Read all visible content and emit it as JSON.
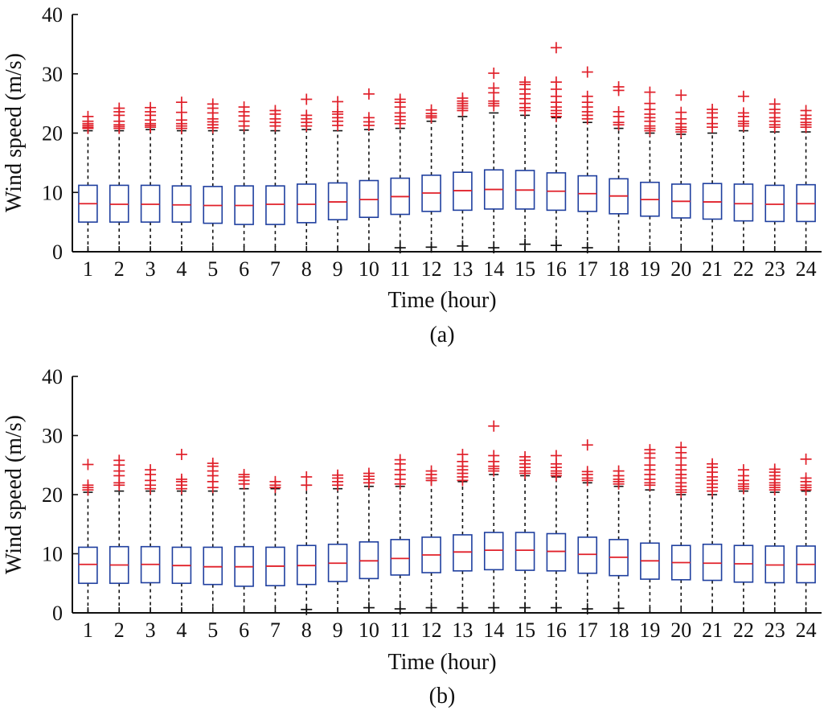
{
  "chart_data": [
    {
      "type": "box",
      "caption": "(a)",
      "xlabel": "Time (hour)",
      "ylabel": "Wind speed (m/s)",
      "ylim": [
        0,
        40
      ],
      "yticks": [
        0,
        10,
        20,
        30,
        40
      ],
      "categories": [
        "1",
        "2",
        "3",
        "4",
        "5",
        "6",
        "7",
        "8",
        "9",
        "10",
        "11",
        "12",
        "13",
        "14",
        "15",
        "16",
        "17",
        "18",
        "19",
        "20",
        "21",
        "22",
        "23",
        "24"
      ],
      "median": [
        8.1,
        8.0,
        8.0,
        7.9,
        7.8,
        7.8,
        8.0,
        8.0,
        8.4,
        8.8,
        9.3,
        9.9,
        10.3,
        10.5,
        10.4,
        10.2,
        9.8,
        9.4,
        8.8,
        8.5,
        8.4,
        8.1,
        8.0,
        8.1
      ],
      "q1": [
        5.0,
        5.0,
        5.0,
        5.0,
        4.8,
        4.6,
        4.6,
        4.9,
        5.4,
        5.8,
        6.3,
        6.8,
        7.0,
        7.2,
        7.2,
        7.0,
        6.8,
        6.4,
        6.0,
        5.7,
        5.5,
        5.2,
        5.1,
        5.1
      ],
      "q3": [
        11.2,
        11.2,
        11.2,
        11.1,
        11.0,
        11.1,
        11.1,
        11.4,
        11.6,
        12.0,
        12.4,
        12.9,
        13.4,
        13.8,
        13.7,
        13.3,
        12.8,
        12.3,
        11.7,
        11.4,
        11.5,
        11.4,
        11.2,
        11.3
      ],
      "whisker_low": [
        0,
        0,
        0,
        0,
        0,
        0,
        0,
        0,
        0,
        0,
        0,
        0,
        0,
        0,
        0,
        0,
        0,
        0,
        0,
        0,
        0,
        0,
        0,
        0
      ],
      "whisker_high": [
        20.4,
        20.4,
        20.6,
        20.4,
        20.4,
        20.5,
        20.4,
        20.6,
        20.4,
        20.6,
        20.8,
        22.0,
        22.8,
        23.4,
        23.0,
        22.6,
        21.8,
        20.8,
        20.0,
        19.8,
        20.0,
        20.4,
        20.2,
        20.2
      ],
      "outliers_high": [
        [
          20.8,
          21.0,
          21.3,
          21.6,
          22.0,
          22.8
        ],
        [
          20.8,
          21.1,
          21.4,
          22.0,
          23.0,
          23.6,
          24.2
        ],
        [
          21.0,
          21.3,
          21.6,
          22.2,
          23.0,
          23.6,
          24.3
        ],
        [
          20.8,
          21.2,
          21.6,
          22.2,
          23.5,
          25.2
        ],
        [
          20.9,
          21.4,
          21.9,
          22.4,
          23.4,
          24.2,
          24.9
        ],
        [
          21.2,
          22.0,
          22.9,
          23.6,
          24.4
        ],
        [
          21.2,
          21.8,
          22.4,
          23.2,
          23.8
        ],
        [
          21.2,
          21.8,
          22.4,
          23.0,
          25.7
        ],
        [
          21.3,
          22.0,
          22.6,
          23.2,
          23.6,
          25.3
        ],
        [
          21.3,
          21.9,
          22.6,
          26.6
        ],
        [
          21.6,
          22.2,
          22.8,
          23.4,
          24.4,
          25.2,
          25.7
        ],
        [
          22.6,
          22.9,
          23.3,
          23.9
        ],
        [
          23.8,
          24.2,
          24.6,
          25.0,
          25.4,
          25.9
        ],
        [
          24.6,
          25.0,
          25.4,
          26.8,
          27.6,
          30.1
        ],
        [
          23.8,
          24.3,
          25.0,
          25.8,
          26.6,
          27.4,
          28.2,
          28.6
        ],
        [
          22.8,
          23.3,
          23.8,
          24.4,
          25.2,
          26.2,
          27.4,
          28.6,
          34.4
        ],
        [
          22.4,
          23.0,
          23.6,
          24.4,
          25.2,
          26.2,
          30.3
        ],
        [
          21.4,
          21.8,
          22.8,
          23.6,
          27.2,
          27.8
        ],
        [
          20.4,
          20.8,
          21.2,
          22.0,
          22.6,
          23.2,
          24.0,
          25.0,
          26.9
        ],
        [
          20.2,
          20.6,
          21.0,
          21.6,
          22.4,
          23.5,
          26.4
        ],
        [
          21.0,
          21.6,
          22.6,
          23.4,
          24.0
        ],
        [
          21.2,
          21.6,
          22.0,
          22.8,
          23.4,
          26.2
        ],
        [
          21.0,
          21.4,
          22.0,
          22.6,
          23.4,
          24.0,
          24.9
        ],
        [
          21.0,
          21.4,
          21.8,
          22.4,
          23.0,
          23.8
        ]
      ],
      "outliers_low": [
        [],
        [],
        [],
        [],
        [],
        [],
        [],
        [],
        [],
        [],
        [
          0.4
        ],
        [
          0.5
        ],
        [
          0.7
        ],
        [
          0.4
        ],
        [
          1.0
        ],
        [
          0.8
        ],
        [
          0.4
        ],
        [],
        [],
        [],
        [],
        [],
        [],
        []
      ]
    },
    {
      "type": "box",
      "caption": "(b)",
      "xlabel": "Time (hour)",
      "ylabel": "Wind speed (m/s)",
      "ylim": [
        0,
        40
      ],
      "yticks": [
        0,
        10,
        20,
        30,
        40
      ],
      "categories": [
        "1",
        "2",
        "3",
        "4",
        "5",
        "6",
        "7",
        "8",
        "9",
        "10",
        "11",
        "12",
        "13",
        "14",
        "15",
        "16",
        "17",
        "18",
        "19",
        "20",
        "21",
        "22",
        "23",
        "24"
      ],
      "median": [
        8.2,
        8.1,
        8.2,
        8.0,
        7.8,
        7.8,
        7.9,
        8.0,
        8.4,
        8.8,
        9.2,
        9.8,
        10.3,
        10.6,
        10.6,
        10.4,
        9.9,
        9.4,
        8.8,
        8.5,
        8.4,
        8.3,
        8.1,
        8.2
      ],
      "q1": [
        5.0,
        5.0,
        5.1,
        5.0,
        4.8,
        4.5,
        4.6,
        4.8,
        5.3,
        5.8,
        6.4,
        6.8,
        7.1,
        7.3,
        7.2,
        7.1,
        6.7,
        6.3,
        5.7,
        5.6,
        5.5,
        5.2,
        5.1,
        5.1
      ],
      "q3": [
        11.1,
        11.2,
        11.2,
        11.1,
        11.1,
        11.2,
        11.1,
        11.4,
        11.6,
        12.0,
        12.4,
        12.8,
        13.2,
        13.6,
        13.6,
        13.4,
        12.8,
        12.4,
        11.8,
        11.4,
        11.6,
        11.4,
        11.3,
        11.3
      ],
      "whisker_low": [
        0,
        0,
        0,
        0,
        0,
        0,
        0,
        0,
        0,
        0,
        0,
        0,
        0,
        0,
        0,
        0,
        0,
        0,
        0,
        0,
        0,
        0,
        0,
        0
      ],
      "whisker_high": [
        20.4,
        20.6,
        20.6,
        20.6,
        20.6,
        21.0,
        21.0,
        21.6,
        21.0,
        21.4,
        21.4,
        22.4,
        22.2,
        23.4,
        23.2,
        23.0,
        22.0,
        21.4,
        20.8,
        20.0,
        20.0,
        20.6,
        20.4,
        20.6
      ],
      "outliers_high": [
        [
          20.8,
          21.2,
          21.6,
          25.1
        ],
        [
          21.6,
          22.0,
          23.2,
          24.0,
          25.0,
          25.8
        ],
        [
          21.0,
          21.6,
          22.4,
          23.4,
          24.2
        ],
        [
          21.0,
          21.6,
          22.2,
          22.6,
          26.8
        ],
        [
          21.2,
          22.2,
          23.2,
          24.0,
          24.8,
          25.3
        ],
        [
          21.8,
          22.4,
          23.0,
          23.4
        ],
        [
          21.2,
          21.6,
          22.2
        ],
        [
          21.6,
          23.0
        ],
        [
          21.6,
          22.2,
          22.8,
          23.3
        ],
        [
          22.0,
          22.6,
          23.1,
          23.6
        ],
        [
          21.8,
          22.6,
          23.4,
          24.2,
          25.2,
          25.9
        ],
        [
          22.4,
          22.8,
          23.4,
          24.0
        ],
        [
          22.4,
          23.0,
          23.6,
          24.2,
          24.8,
          25.6,
          26.8
        ],
        [
          24.0,
          24.4,
          24.8,
          25.6,
          26.6,
          31.6
        ],
        [
          23.6,
          24.0,
          24.6,
          25.2,
          25.8,
          26.4
        ],
        [
          23.2,
          23.6,
          24.0,
          24.6,
          25.2,
          26.6
        ],
        [
          22.4,
          22.8,
          23.4,
          23.9,
          28.4
        ],
        [
          21.8,
          22.2,
          22.6,
          23.2,
          24.0
        ],
        [
          21.6,
          22.0,
          22.6,
          23.4,
          24.2,
          25.0,
          26.2,
          27.0,
          27.6
        ],
        [
          20.4,
          20.8,
          21.4,
          22.0,
          22.8,
          23.4,
          24.2,
          25.0,
          26.2,
          27.1,
          28.0
        ],
        [
          20.6,
          21.2,
          21.8,
          22.4,
          23.0,
          23.8,
          24.6,
          25.2
        ],
        [
          21.0,
          21.4,
          21.8,
          22.4,
          23.2,
          24.2
        ],
        [
          20.8,
          21.2,
          21.6,
          22.0,
          22.6,
          23.2,
          23.8,
          24.3
        ],
        [
          20.8,
          21.2,
          21.6,
          22.2,
          22.8,
          26.0
        ]
      ],
      "outliers_low": [
        [],
        [],
        [],
        [],
        [],
        [],
        [],
        [
          0.3
        ],
        [],
        [
          0.6
        ],
        [
          0.4
        ],
        [
          0.6
        ],
        [
          0.6
        ],
        [
          0.6
        ],
        [
          0.6
        ],
        [
          0.6
        ],
        [
          0.4
        ],
        [
          0.5
        ],
        [],
        [],
        [],
        [],
        [],
        []
      ]
    }
  ]
}
